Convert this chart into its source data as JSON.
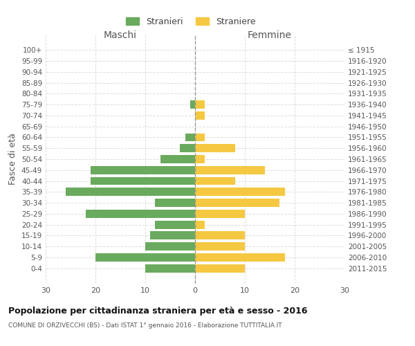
{
  "age_groups": [
    "100+",
    "95-99",
    "90-94",
    "85-89",
    "80-84",
    "75-79",
    "70-74",
    "65-69",
    "60-64",
    "55-59",
    "50-54",
    "45-49",
    "40-44",
    "35-39",
    "30-34",
    "25-29",
    "20-24",
    "15-19",
    "10-14",
    "5-9",
    "0-4"
  ],
  "birth_years": [
    "≤ 1915",
    "1916-1920",
    "1921-1925",
    "1926-1930",
    "1931-1935",
    "1936-1940",
    "1941-1945",
    "1946-1950",
    "1951-1955",
    "1956-1960",
    "1961-1965",
    "1966-1970",
    "1971-1975",
    "1976-1980",
    "1981-1985",
    "1986-1990",
    "1991-1995",
    "1996-2000",
    "2001-2005",
    "2006-2010",
    "2011-2015"
  ],
  "maschi": [
    0,
    0,
    0,
    0,
    0,
    1,
    0,
    0,
    2,
    3,
    7,
    21,
    21,
    26,
    8,
    22,
    8,
    9,
    10,
    20,
    10
  ],
  "femmine": [
    0,
    0,
    0,
    0,
    0,
    2,
    2,
    0,
    2,
    8,
    2,
    14,
    8,
    18,
    17,
    10,
    2,
    10,
    10,
    18,
    10
  ],
  "maschi_color": "#6aaa5e",
  "femmine_color": "#f5c842",
  "title": "Popolazione per cittadinanza straniera per età e sesso - 2016",
  "subtitle": "COMUNE DI ORZIVECCHI (BS) - Dati ISTAT 1° gennaio 2016 - Elaborazione TUTTITALIA.IT",
  "xlabel_left": "Maschi",
  "xlabel_right": "Femmine",
  "ylabel_left": "Fasce di età",
  "legend_maschi": "Stranieri",
  "legend_femmine": "Straniere",
  "xlim": 30,
  "background_color": "#ffffff",
  "grid_color": "#dddddd"
}
